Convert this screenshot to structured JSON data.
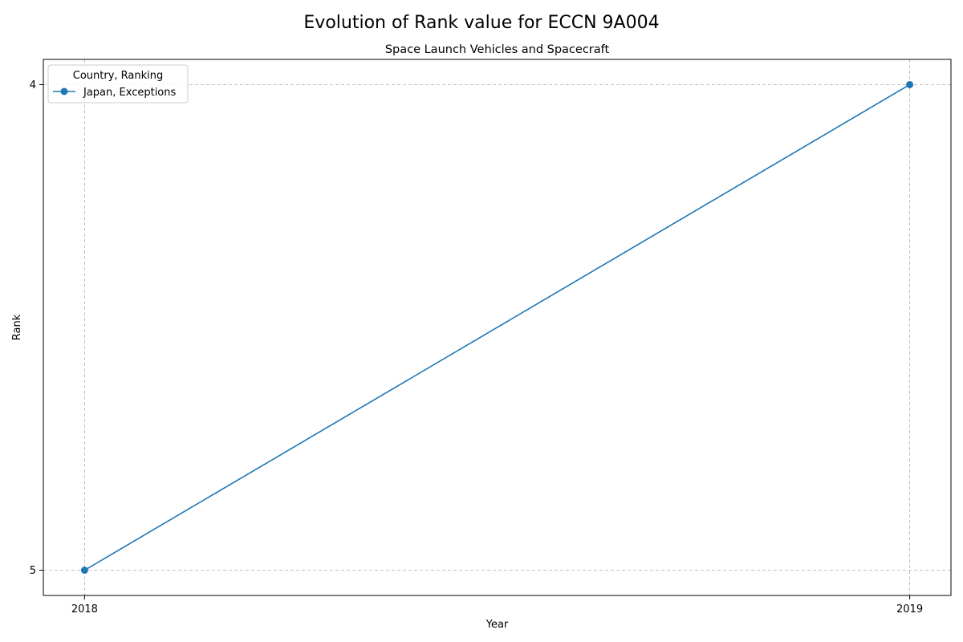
{
  "chart_data": {
    "type": "line",
    "title": "Evolution of Rank value for ECCN 9A004",
    "subtitle": "Space Launch Vehicles and Spacecraft",
    "xlabel": "Year",
    "ylabel": "Rank",
    "x_ticks": [
      "2018",
      "2019"
    ],
    "y_ticks": [
      "4",
      "5"
    ],
    "xlim": [
      2017.95,
      2019.05
    ],
    "ylim": [
      5.052,
      3.948
    ],
    "y_inverted": true,
    "grid": true,
    "legend": {
      "title": "Country, Ranking",
      "placement": "top-left"
    },
    "series": [
      {
        "name": "Japan, Exceptions",
        "color": "#1f77b4",
        "marker": "circle",
        "points": [
          {
            "x": 2018,
            "y": 5
          },
          {
            "x": 2019,
            "y": 4
          }
        ]
      }
    ]
  }
}
